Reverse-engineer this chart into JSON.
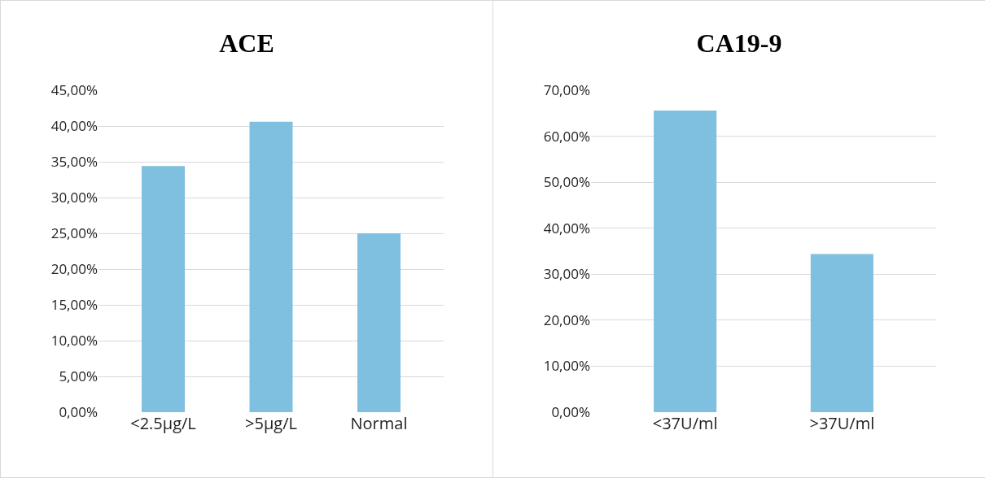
{
  "chart_data": [
    {
      "type": "bar",
      "title": "ACE",
      "categories": [
        "<2.5µg/L",
        ">5µg/L",
        "Normal"
      ],
      "values": [
        34.4,
        40.6,
        25.0
      ],
      "color": "#7fbfdf",
      "ylim": [
        0,
        45
      ],
      "yticks": [
        {
          "value": 0,
          "label": "0,00%"
        },
        {
          "value": 5,
          "label": "5,00%"
        },
        {
          "value": 10,
          "label": "10,00%"
        },
        {
          "value": 15,
          "label": "15,00%"
        },
        {
          "value": 20,
          "label": "20,00%"
        },
        {
          "value": 25,
          "label": "25,00%"
        },
        {
          "value": 30,
          "label": "30,00%"
        },
        {
          "value": 35,
          "label": "35,00%"
        },
        {
          "value": 40,
          "label": "40,00%"
        },
        {
          "value": 45,
          "label": "45,00%"
        }
      ],
      "grid": "y"
    },
    {
      "type": "bar",
      "title": "CA19-9",
      "categories": [
        "<37U/ml",
        ">37U/ml"
      ],
      "values": [
        65.6,
        34.4
      ],
      "color": "#7fbfdf",
      "ylim": [
        0,
        70
      ],
      "yticks": [
        {
          "value": 0,
          "label": "0,00%"
        },
        {
          "value": 10,
          "label": "10,00%"
        },
        {
          "value": 20,
          "label": "20,00%"
        },
        {
          "value": 30,
          "label": "30,00%"
        },
        {
          "value": 40,
          "label": "40,00%"
        },
        {
          "value": 50,
          "label": "50,00%"
        },
        {
          "value": 60,
          "label": "60,00%"
        },
        {
          "value": 70,
          "label": "70,00%"
        }
      ],
      "grid": "y"
    }
  ]
}
